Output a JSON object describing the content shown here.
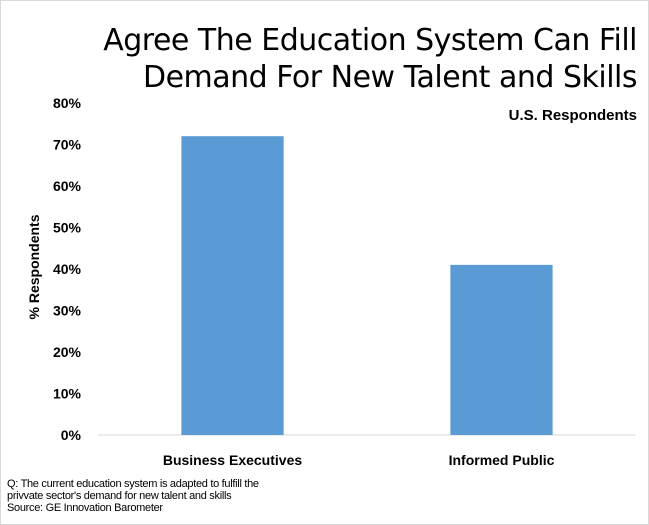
{
  "chart_data": {
    "type": "bar",
    "title": "Agree The Education System Can Fill Demand For New Talent and Skills",
    "title_lines": [
      "Agree The Education System Can Fill",
      "Demand For New Talent and Skills"
    ],
    "subtitle": "U.S. Respondents",
    "ylabel": "% Respondents",
    "xlabel": "",
    "categories": [
      "Business Executives",
      "Informed Public"
    ],
    "values": [
      72,
      41
    ],
    "unit": "%",
    "ylim": [
      0,
      80
    ],
    "yticks": [
      0,
      10,
      20,
      30,
      40,
      50,
      60,
      70,
      80
    ],
    "ytick_labels": [
      "0%",
      "10%",
      "20%",
      "30%",
      "40%",
      "50%",
      "60%",
      "70%",
      "80%"
    ],
    "grid": false,
    "legend": "none",
    "bar_color": "#5b9bd5"
  },
  "footnote": {
    "question_lines": [
      "Q: The current education system is adapted to fulfill the",
      "privvate sector's demand for new talent and skills"
    ],
    "source": "Source: GE Innovation Barometer"
  }
}
